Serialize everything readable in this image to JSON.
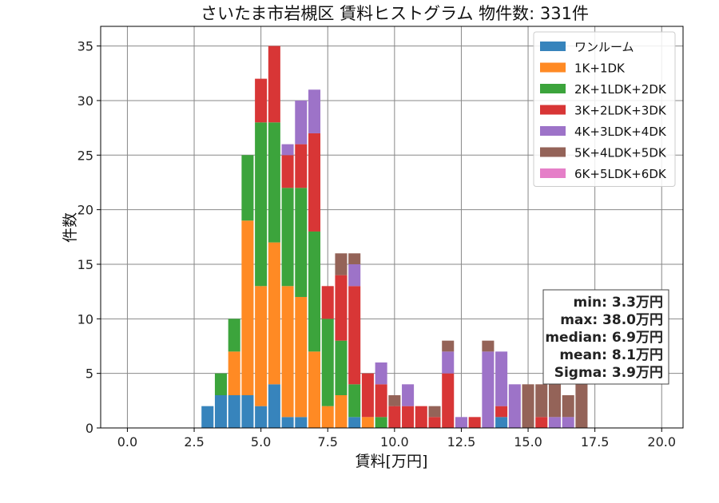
{
  "chart_data": {
    "type": "bar",
    "stacked": true,
    "title": "さいたま市岩槻区 賃料ヒストグラム  物件数: 331件",
    "xlabel": "賃料[万円]",
    "ylabel": "件数",
    "xlim": [
      -1.0,
      20.8
    ],
    "ylim": [
      0,
      36.8
    ],
    "xticks": [
      "0.0",
      "2.5",
      "5.0",
      "7.5",
      "10.0",
      "12.5",
      "15.0",
      "17.5",
      "20.0"
    ],
    "yticks": [
      "0",
      "5",
      "10",
      "15",
      "20",
      "25",
      "30",
      "35"
    ],
    "bin_width": 0.5,
    "x": [
      3.0,
      3.5,
      4.0,
      4.5,
      5.0,
      5.5,
      6.0,
      6.5,
      7.0,
      7.5,
      8.0,
      8.5,
      9.0,
      9.5,
      10.0,
      10.5,
      11.0,
      11.5,
      12.0,
      12.5,
      13.0,
      13.5,
      14.0,
      14.5,
      15.0,
      15.5,
      16.0,
      16.5,
      17.0
    ],
    "grid": true,
    "legend_position": "top-right",
    "series": [
      {
        "name": "ワンルーム",
        "color": "#3784bc",
        "values": [
          2,
          3,
          3,
          3,
          2,
          4,
          1,
          1,
          0,
          0,
          0,
          1,
          0,
          0,
          0,
          0,
          0,
          0,
          0,
          0,
          0,
          0,
          1,
          0,
          0,
          0,
          0,
          0,
          0
        ]
      },
      {
        "name": "1K+1DK",
        "color": "#ff8a24",
        "values": [
          0,
          0,
          4,
          16,
          11,
          13,
          12,
          11,
          7,
          2,
          3,
          0,
          1,
          0,
          0,
          0,
          0,
          0,
          0,
          0,
          0,
          0,
          0,
          0,
          0,
          0,
          0,
          0,
          0
        ]
      },
      {
        "name": "2K+1LDK+2DK",
        "color": "#3ca43c",
        "values": [
          0,
          2,
          3,
          6,
          15,
          11,
          9,
          10,
          11,
          8,
          5,
          3,
          0,
          1,
          0,
          0,
          0,
          0,
          0,
          0,
          0,
          0,
          0,
          0,
          0,
          0,
          0,
          0,
          0
        ]
      },
      {
        "name": "3K+2LDK+3DK",
        "color": "#d83636",
        "values": [
          0,
          0,
          0,
          0,
          4,
          7,
          3,
          4,
          9,
          3,
          6,
          9,
          4,
          3,
          2,
          2,
          2,
          1,
          5,
          0,
          1,
          0,
          1,
          0,
          0,
          1,
          0,
          0,
          0
        ]
      },
      {
        "name": "4K+3LDK+4DK",
        "color": "#9d73c8",
        "values": [
          0,
          0,
          0,
          0,
          0,
          0,
          1,
          4,
          4,
          0,
          0,
          2,
          0,
          2,
          0,
          2,
          0,
          0,
          2,
          1,
          0,
          7,
          5,
          4,
          0,
          0,
          1,
          1,
          0
        ]
      },
      {
        "name": "5K+4LDK+5DK",
        "color": "#946358",
        "values": [
          0,
          0,
          0,
          0,
          0,
          0,
          0,
          0,
          0,
          0,
          2,
          1,
          0,
          0,
          1,
          0,
          0,
          1,
          1,
          0,
          0,
          1,
          0,
          0,
          4,
          3,
          3,
          2,
          4
        ]
      },
      {
        "name": "6K+5LDK+6DK",
        "color": "#e57fc8",
        "values": [
          0,
          0,
          0,
          0,
          0,
          0,
          0,
          0,
          0,
          0,
          0,
          0,
          0,
          0,
          0,
          0,
          0,
          0,
          0,
          0,
          0,
          0,
          0,
          0,
          0,
          0,
          0,
          0,
          0
        ]
      }
    ],
    "stats": {
      "min": "min: 3.3万円",
      "max": "max: 38.0万円",
      "median": "median: 6.9万円",
      "mean": "mean: 8.1万円",
      "sigma": "Sigma: 3.9万円"
    }
  }
}
